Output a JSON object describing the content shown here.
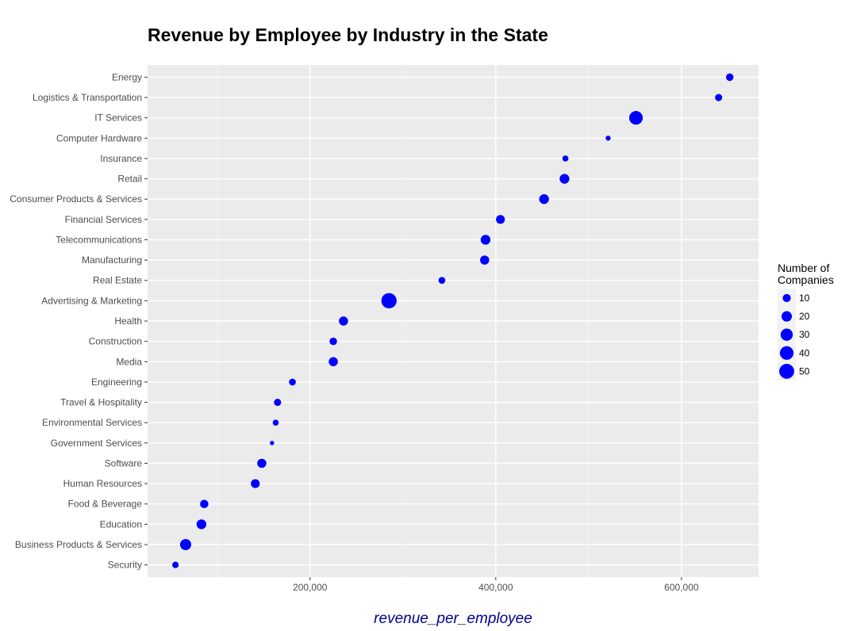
{
  "chart_data": {
    "type": "scatter",
    "title": "Revenue by Employee by Industry in the State",
    "xlabel": "revenue_per_employee",
    "ylabel": "",
    "xlim": [
      25000,
      683000
    ],
    "x_ticks": [
      200000,
      400000,
      600000
    ],
    "x_tick_labels": [
      "200,000",
      "400,000",
      "600,000"
    ],
    "grid": true,
    "point_color": "#0000ff",
    "panel_background": "#ebebeb",
    "categories": [
      "Energy",
      "Logistics & Transportation",
      "IT Services",
      "Computer Hardware",
      "Insurance",
      "Retail",
      "Consumer Products & Services",
      "Financial Services",
      "Telecommunications",
      "Manufacturing",
      "Real Estate",
      "Advertising & Marketing",
      "Health",
      "Construction",
      "Media",
      "Engineering",
      "Travel & Hospitality",
      "Environmental Services",
      "Government Services",
      "Software",
      "Human Resources",
      "Food & Beverage",
      "Education",
      "Business Products & Services",
      "Security"
    ],
    "points": [
      {
        "category": "Energy",
        "x": 652000,
        "size": 8
      },
      {
        "category": "Logistics & Transportation",
        "x": 640000,
        "size": 7
      },
      {
        "category": "IT Services",
        "x": 551000,
        "size": 40
      },
      {
        "category": "Computer Hardware",
        "x": 521000,
        "size": 2
      },
      {
        "category": "Insurance",
        "x": 475000,
        "size": 4
      },
      {
        "category": "Retail",
        "x": 474000,
        "size": 17
      },
      {
        "category": "Consumer Products & Services",
        "x": 452000,
        "size": 17
      },
      {
        "category": "Financial Services",
        "x": 405000,
        "size": 13
      },
      {
        "category": "Telecommunications",
        "x": 389000,
        "size": 17
      },
      {
        "category": "Manufacturing",
        "x": 388000,
        "size": 14
      },
      {
        "category": "Real Estate",
        "x": 342000,
        "size": 6
      },
      {
        "category": "Advertising & Marketing",
        "x": 285000,
        "size": 53
      },
      {
        "category": "Health",
        "x": 236000,
        "size": 14
      },
      {
        "category": "Construction",
        "x": 225000,
        "size": 8
      },
      {
        "category": "Media",
        "x": 225000,
        "size": 14
      },
      {
        "category": "Engineering",
        "x": 181000,
        "size": 6
      },
      {
        "category": "Travel & Hospitality",
        "x": 165000,
        "size": 7
      },
      {
        "category": "Environmental Services",
        "x": 163000,
        "size": 4
      },
      {
        "category": "Government Services",
        "x": 159000,
        "size": 1
      },
      {
        "category": "Software",
        "x": 148000,
        "size": 14
      },
      {
        "category": "Human Resources",
        "x": 141000,
        "size": 13
      },
      {
        "category": "Food & Beverage",
        "x": 86000,
        "size": 11
      },
      {
        "category": "Education",
        "x": 83000,
        "size": 17
      },
      {
        "category": "Business Products & Services",
        "x": 66000,
        "size": 24
      },
      {
        "category": "Security",
        "x": 55000,
        "size": 5
      }
    ],
    "legend": {
      "title_lines": [
        "Number of",
        "Companies"
      ],
      "placement": "right",
      "entries": [
        {
          "label": "10",
          "size": 10
        },
        {
          "label": "20",
          "size": 20
        },
        {
          "label": "30",
          "size": 30
        },
        {
          "label": "40",
          "size": 40
        },
        {
          "label": "50",
          "size": 50
        }
      ]
    }
  }
}
